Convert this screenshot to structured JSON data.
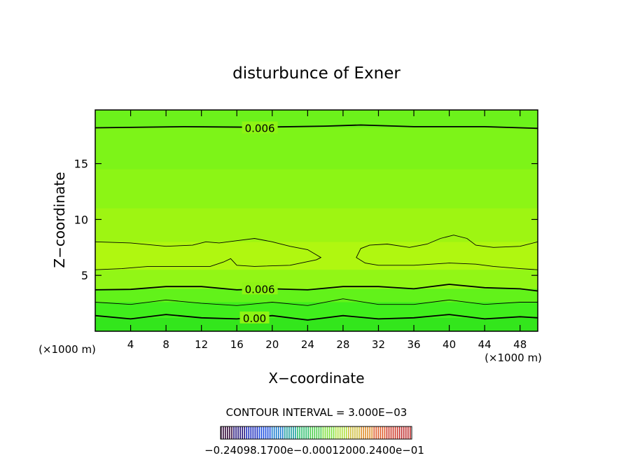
{
  "chart_data": {
    "type": "contour",
    "title": "disturbunce of Exner",
    "xlabel": "X−coordinate",
    "ylabel": "Z−coordinate",
    "x_unit_left": "(×1000 m)",
    "x_unit_right": "(×1000 m)",
    "xlim": [
      0,
      50
    ],
    "ylim": [
      0,
      19.8
    ],
    "x_ticks": [
      4,
      8,
      12,
      16,
      20,
      24,
      28,
      32,
      36,
      40,
      44,
      48
    ],
    "y_ticks": [
      5,
      10,
      15
    ],
    "contour_interval_text": "CONTOUR INTERVAL = 3.000E−03",
    "contour_labels": [
      {
        "text": "0.006",
        "x": 18.6,
        "z": 18.2
      },
      {
        "text": "0.006",
        "x": 18.6,
        "z": 3.8
      },
      {
        "text": "0.00",
        "x": 18.0,
        "z": 1.2
      }
    ],
    "contours": [
      {
        "value": 0.006,
        "heavy": true,
        "points": [
          [
            0,
            18.2
          ],
          [
            10,
            18.3
          ],
          [
            18,
            18.25
          ],
          [
            26,
            18.35
          ],
          [
            30,
            18.45
          ],
          [
            36,
            18.3
          ],
          [
            44,
            18.3
          ],
          [
            50,
            18.15
          ]
        ]
      },
      {
        "value": 0.009,
        "heavy": false,
        "points": [
          [
            0,
            8.0
          ],
          [
            4,
            7.9
          ],
          [
            8,
            7.6
          ],
          [
            11,
            7.7
          ],
          [
            12.5,
            8.0
          ],
          [
            14,
            7.9
          ],
          [
            16,
            8.1
          ],
          [
            18,
            8.3
          ],
          [
            20,
            8.0
          ],
          [
            22,
            7.6
          ],
          [
            24,
            7.3
          ],
          [
            25.5,
            6.6
          ],
          [
            25,
            6.4
          ],
          [
            22,
            5.9
          ],
          [
            18,
            5.8
          ],
          [
            16,
            5.9
          ],
          [
            15.3,
            6.5
          ],
          [
            14.5,
            6.2
          ],
          [
            13,
            5.8
          ],
          [
            10,
            5.8
          ],
          [
            6,
            5.8
          ],
          [
            3,
            5.6
          ],
          [
            0,
            5.5
          ]
        ]
      },
      {
        "value": 0.009,
        "heavy": false,
        "points": [
          [
            50,
            8.0
          ],
          [
            48,
            7.6
          ],
          [
            45,
            7.5
          ],
          [
            43,
            7.7
          ],
          [
            42,
            8.3
          ],
          [
            40.5,
            8.6
          ],
          [
            39,
            8.3
          ],
          [
            37.5,
            7.8
          ],
          [
            35.5,
            7.5
          ],
          [
            33,
            7.8
          ],
          [
            31,
            7.7
          ],
          [
            30,
            7.4
          ],
          [
            29.5,
            6.6
          ],
          [
            30.5,
            6.1
          ],
          [
            32,
            5.9
          ],
          [
            36,
            5.9
          ],
          [
            40,
            6.1
          ],
          [
            43,
            6.0
          ],
          [
            45,
            5.8
          ],
          [
            48,
            5.6
          ],
          [
            50,
            5.5
          ]
        ]
      },
      {
        "value": 0.006,
        "heavy": true,
        "points": [
          [
            0,
            3.7
          ],
          [
            4,
            3.75
          ],
          [
            8,
            4.0
          ],
          [
            12,
            4.0
          ],
          [
            16,
            3.7
          ],
          [
            20,
            3.8
          ],
          [
            24,
            3.7
          ],
          [
            28,
            4.0
          ],
          [
            32,
            4.0
          ],
          [
            36,
            3.8
          ],
          [
            40,
            4.2
          ],
          [
            44,
            3.9
          ],
          [
            48,
            3.8
          ],
          [
            50,
            3.6
          ]
        ]
      },
      {
        "value": 0.003,
        "heavy": false,
        "points": [
          [
            0,
            2.6
          ],
          [
            4,
            2.4
          ],
          [
            8,
            2.8
          ],
          [
            12,
            2.5
          ],
          [
            16,
            2.3
          ],
          [
            20,
            2.6
          ],
          [
            24,
            2.3
          ],
          [
            28,
            2.9
          ],
          [
            32,
            2.4
          ],
          [
            36,
            2.4
          ],
          [
            40,
            2.8
          ],
          [
            44,
            2.4
          ],
          [
            48,
            2.6
          ],
          [
            50,
            2.6
          ]
        ]
      },
      {
        "value": 0.0,
        "heavy": true,
        "points": [
          [
            0,
            1.4
          ],
          [
            4,
            1.1
          ],
          [
            8,
            1.5
          ],
          [
            12,
            1.2
          ],
          [
            16,
            1.1
          ],
          [
            20,
            1.4
          ],
          [
            24,
            1.0
          ],
          [
            28,
            1.4
          ],
          [
            32,
            1.1
          ],
          [
            36,
            1.2
          ],
          [
            40,
            1.5
          ],
          [
            44,
            1.1
          ],
          [
            48,
            1.3
          ],
          [
            50,
            1.2
          ]
        ]
      }
    ],
    "fill_bands_z": [
      {
        "z": [
          0,
          1.2
        ],
        "color": "#33e61c"
      },
      {
        "z": [
          1.2,
          2.6
        ],
        "color": "#40ee1c"
      },
      {
        "z": [
          2.6,
          3.8
        ],
        "color": "#62f21a"
      },
      {
        "z": [
          3.8,
          5.5
        ],
        "color": "#92f616"
      },
      {
        "z": [
          5.5,
          8.0
        ],
        "color": "#b0f710"
      },
      {
        "z": [
          8.0,
          11.0
        ],
        "color": "#9ef512"
      },
      {
        "z": [
          11.0,
          14.5
        ],
        "color": "#8cf515"
      },
      {
        "z": [
          14.5,
          18.2
        ],
        "color": "#7df418"
      },
      {
        "z": [
          18.2,
          19.8
        ],
        "color": "#6cf21b"
      }
    ],
    "colorbar": {
      "tick_labels": [
        "−0.240",
        "−8.00e−02",
        "−0.00",
        "0.120",
        "0.240"
      ],
      "tick_labels_text": "−0.24098.1700e−0.00012000.2400e−01",
      "colors": [
        "#3a1040",
        "#2a1a80",
        "#2030c0",
        "#2050e0",
        "#2080d0",
        "#20a0a0",
        "#30c070",
        "#50d050",
        "#80e040",
        "#b0e040",
        "#d0c040",
        "#e09030",
        "#e06030",
        "#d04030",
        "#c03030"
      ]
    }
  }
}
